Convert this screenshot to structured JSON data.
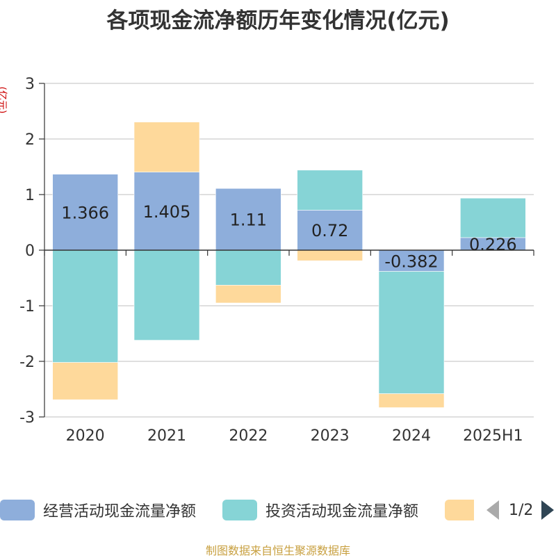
{
  "chart_data": {
    "type": "bar",
    "stacked": true,
    "title": "各项现金流净额历年变化情况(亿元)",
    "ylabel": "(亿元)",
    "categories": [
      "2020",
      "2021",
      "2022",
      "2023",
      "2024",
      "2025H1"
    ],
    "ylim": [
      -3,
      3
    ],
    "yticks": [
      3,
      2,
      1,
      0,
      -1,
      -2,
      -3
    ],
    "grid": true,
    "legend_position": "bottom",
    "series": [
      {
        "name": "经营活动现金流量净额",
        "color": "#8eaedb",
        "values": [
          1.366,
          1.405,
          1.11,
          0.72,
          -0.382,
          0.226
        ],
        "labels": [
          "1.366",
          "1.405",
          "1.11",
          "0.72",
          "-0.382",
          "0.226"
        ]
      },
      {
        "name": "投资活动现金流量净额",
        "color": "#86d4d6",
        "values": [
          -2.02,
          -1.62,
          -0.63,
          0.72,
          -2.2,
          0.71
        ]
      },
      {
        "name": "",
        "color": "#fed99b",
        "values": [
          -0.67,
          0.9,
          -0.32,
          -0.19,
          -0.25,
          0
        ]
      }
    ]
  },
  "legend": {
    "pager_text": "1/2"
  },
  "footer": {
    "source": "制图数据来自恒生聚源数据库"
  }
}
